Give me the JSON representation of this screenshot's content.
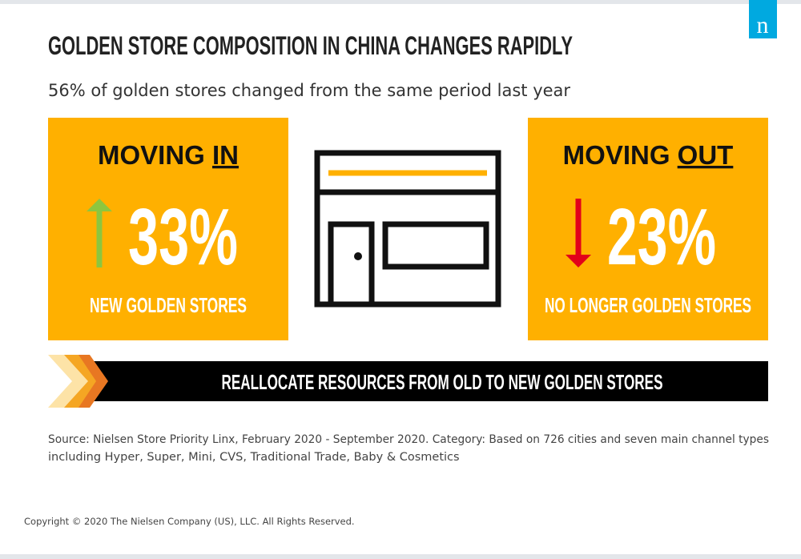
{
  "logo": "n",
  "header": {
    "title": "GOLDEN STORE COMPOSITION IN CHINA CHANGES RAPIDLY",
    "subtitle": "56% of golden stores changed from the same period last year"
  },
  "panels": [
    {
      "heading": "MOVING",
      "emphasis": "IN",
      "stat": "33%",
      "caption": "NEW GOLDEN STORES"
    },
    {
      "heading": "MOVING",
      "emphasis": "OUT",
      "stat": "23%",
      "caption": "NO LONGER GOLDEN STORES"
    }
  ],
  "banner": "REALLOCATE RESOURCES FROM OLD TO NEW GOLDEN STORES",
  "source": [
    "Source: Nielsen Store Priority Linx, February 2020 - September 2020. Category: Based on 726 cities and seven main channel types",
    "including Hyper, Super, Mini, CVS, Traditional Trade, Baby & Cosmetics"
  ],
  "copyright": "Copyright © 2020 The Nielsen Company (US), LLC. All Rights Reserved."
}
